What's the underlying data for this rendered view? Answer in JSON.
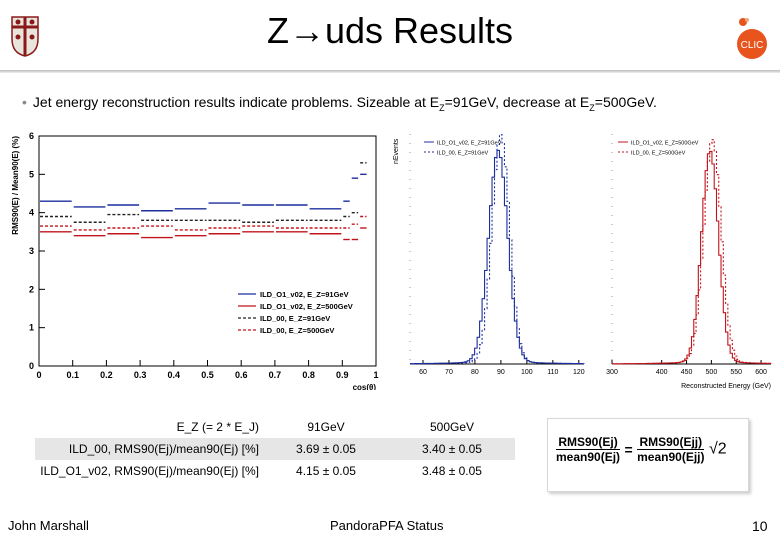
{
  "slide": {
    "title": "Z→uds Results",
    "bullet": "Jet energy reconstruction results indicate problems. Sizeable at E",
    "bullet_sub1": "Z",
    "bullet_mid": "=91GeV, decrease at E",
    "bullet_sub2": "Z",
    "bullet_end": "=500GeV.",
    "footer_left": "John Marshall",
    "footer_center": "PandoraPFA Status",
    "page_number": "10"
  },
  "logo": {
    "text": "CLIC",
    "color": "#e8541e"
  },
  "colors": {
    "blue": "#1c2f9e",
    "red": "#c0141c",
    "grey_band": "#e6e6e6"
  },
  "chart_data": [
    {
      "type": "line",
      "ylabel": "RMS90(E) / Mean90(E) (%)",
      "xlabel": "cos(θ)",
      "xlim": [
        0,
        1
      ],
      "ylim": [
        0,
        6
      ],
      "x_ticks": [
        "0",
        "0.1",
        "0.2",
        "0.3",
        "0.4",
        "0.5",
        "0.6",
        "0.7",
        "0.8",
        "0.9",
        "1"
      ],
      "y_ticks": [
        "0",
        "1",
        "2",
        "3",
        "4",
        "5",
        "6"
      ],
      "legend": "bottom-right",
      "legend_entries": [
        "ILD_O1_v02, E_Z=91GeV",
        "ILD_O1_v02, E_Z=500GeV",
        "ILD_00, E_Z=91GeV",
        "ILD_00, E_Z=500GeV"
      ],
      "bin_edges": [
        0,
        0.1,
        0.2,
        0.3,
        0.4,
        0.5,
        0.6,
        0.7,
        0.8,
        0.9,
        0.925,
        0.95,
        0.975
      ],
      "series": [
        {
          "name": "ILD_O1_v02, E_Z=91GeV",
          "color": "#1c2f9e",
          "dash": "solid",
          "values": [
            4.3,
            4.15,
            4.2,
            4.05,
            4.1,
            4.25,
            4.2,
            4.2,
            4.1,
            4.3,
            4.9,
            5.0
          ]
        },
        {
          "name": "ILD_O1_v02, E_Z=500GeV",
          "color": "#c0141c",
          "dash": "solid",
          "values": [
            3.5,
            3.4,
            3.45,
            3.35,
            3.4,
            3.45,
            3.5,
            3.5,
            3.45,
            3.3,
            3.3,
            3.6
          ]
        },
        {
          "name": "ILD_00, E_Z=91GeV",
          "color": "#222222",
          "dash": "dashed",
          "values": [
            3.9,
            3.75,
            3.95,
            3.8,
            3.8,
            3.8,
            3.75,
            3.8,
            3.8,
            3.9,
            4.0,
            5.3
          ]
        },
        {
          "name": "ILD_00, E_Z=500GeV",
          "color": "#c0141c",
          "dash": "dashed",
          "values": [
            3.65,
            3.55,
            3.6,
            3.65,
            3.55,
            3.6,
            3.65,
            3.6,
            3.6,
            3.6,
            3.7,
            3.9
          ]
        }
      ]
    },
    {
      "type": "line",
      "ylabel": "nEvents",
      "xlabel": "Reconstructed Energy (GeV)",
      "x_ticks_left": [
        "60",
        "70",
        "80",
        "90",
        "100",
        "110",
        "120"
      ],
      "x_ticks_right": [
        "300",
        "400",
        "450",
        "500",
        "550",
        "600"
      ],
      "legend_entries_left": [
        "ILD_O1_v02, E_Z=91GeV",
        "ILD_00, E_Z=91GeV"
      ],
      "legend_entries_right": [
        "ILD_O1_v02, E_Z=500GeV",
        "ILD_00, E_Z=500GeV"
      ],
      "legend": "top",
      "series": [
        {
          "name": "ILD_O1_v02, E_Z=91GeV",
          "color": "#1c2f9e",
          "dash": "solid",
          "panel": "left",
          "mean": 88.5,
          "sigma": 3.7,
          "peak": 0.93
        },
        {
          "name": "ILD_00, E_Z=91GeV",
          "color": "#1c2f9e",
          "dash": "dashed",
          "panel": "left",
          "mean": 89.5,
          "sigma": 3.4,
          "peak": 1.0
        },
        {
          "name": "ILD_O1_v02, E_Z=500GeV",
          "color": "#c0141c",
          "dash": "solid",
          "panel": "right",
          "mean": 495,
          "sigma": 17,
          "peak": 0.93
        },
        {
          "name": "ILD_00, E_Z=500GeV",
          "color": "#c0141c",
          "dash": "dashed",
          "panel": "right",
          "mean": 500,
          "sigma": 17.5,
          "peak": 0.98
        }
      ]
    }
  ],
  "table": {
    "header_label": "E_Z (= 2 * E_J)",
    "col1": "91GeV",
    "col2": "500GeV",
    "rows": [
      {
        "label": "ILD_00,  RMS90(Ej)/mean90(Ej) [%]",
        "v1": "3.69 ± 0.05",
        "v2": "3.40 ± 0.05"
      },
      {
        "label": "ILD_O1_v02, RMS90(Ej)/mean90(Ej) [%]",
        "v1": "4.15 ± 0.05",
        "v2": "3.48 ± 0.05"
      }
    ]
  },
  "formula": {
    "lhs_num": "RMS90(Ej)",
    "lhs_den": "mean90(Ej)",
    "rhs_num": "RMS90(Ejj)",
    "rhs_den": "mean90(Ejj)",
    "factor": "√2"
  }
}
